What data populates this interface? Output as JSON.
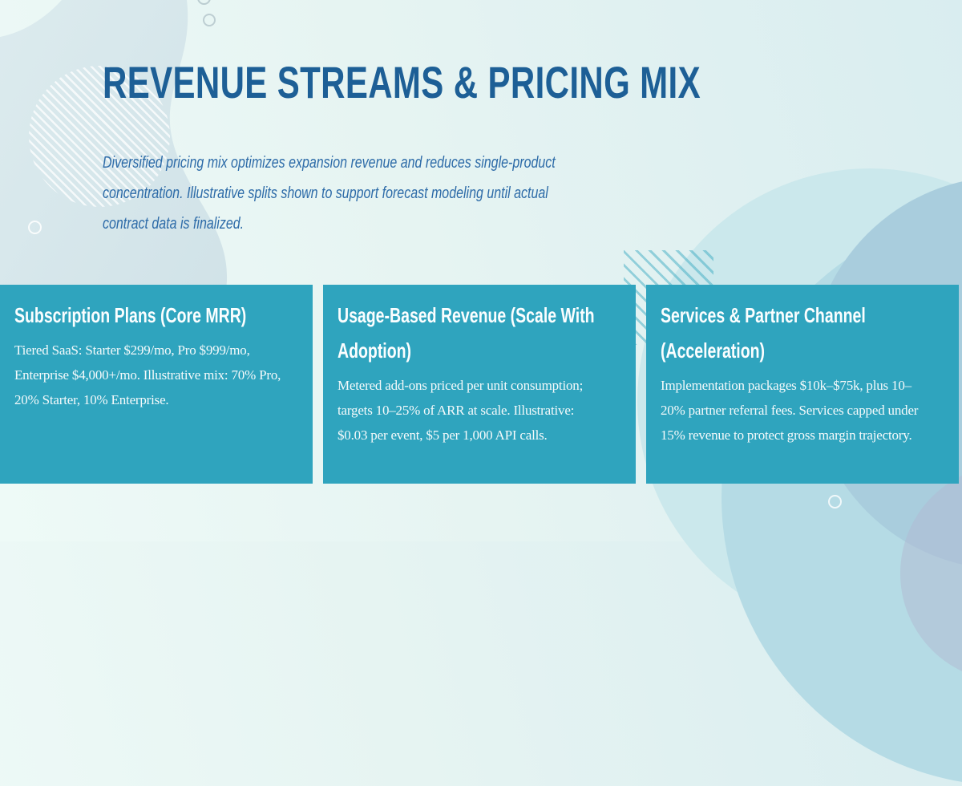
{
  "slide": {
    "title": "REVENUE STREAMS & PRICING MIX",
    "subtitle_lines": [
      "Diversified pricing mix optimizes expansion revenue and reduces single-product",
      "concentration. Illustrative splits shown to support forecast modeling until actual",
      "contract data is finalized."
    ],
    "cards": [
      {
        "heading_lines": [
          "Subscription Plans (Core MRR)"
        ],
        "body_lines": [
          "Tiered SaaS: Starter $299/mo, Pro $999/mo,",
          "Enterprise $4,000+/mo. Illustrative mix: 70% Pro,",
          "20% Starter, 10% Enterprise."
        ]
      },
      {
        "heading_lines": [
          "Usage-Based Revenue (Scale With",
          "Adoption)"
        ],
        "body_lines": [
          "Metered add-ons priced per unit consumption;",
          "targets 10–25% of ARR at scale. Illustrative:",
          "$0.03 per event, $5 per 1,000 API calls."
        ]
      },
      {
        "heading_lines": [
          "Services & Partner Channel",
          "(Acceleration)"
        ],
        "body_lines": [
          "Implementation packages $10k–$75k, plus 10–",
          "20% partner referral fees. Services capped under",
          "15% revenue to protect gross margin trajectory."
        ]
      }
    ]
  },
  "colors": {
    "title": "#1d5f96",
    "subtitle": "#2d6ba8",
    "card_background": "#2fa4be",
    "card_text": "#ffffff",
    "background_light": "#eefaf7",
    "background_cyan": "#d9edf0"
  }
}
